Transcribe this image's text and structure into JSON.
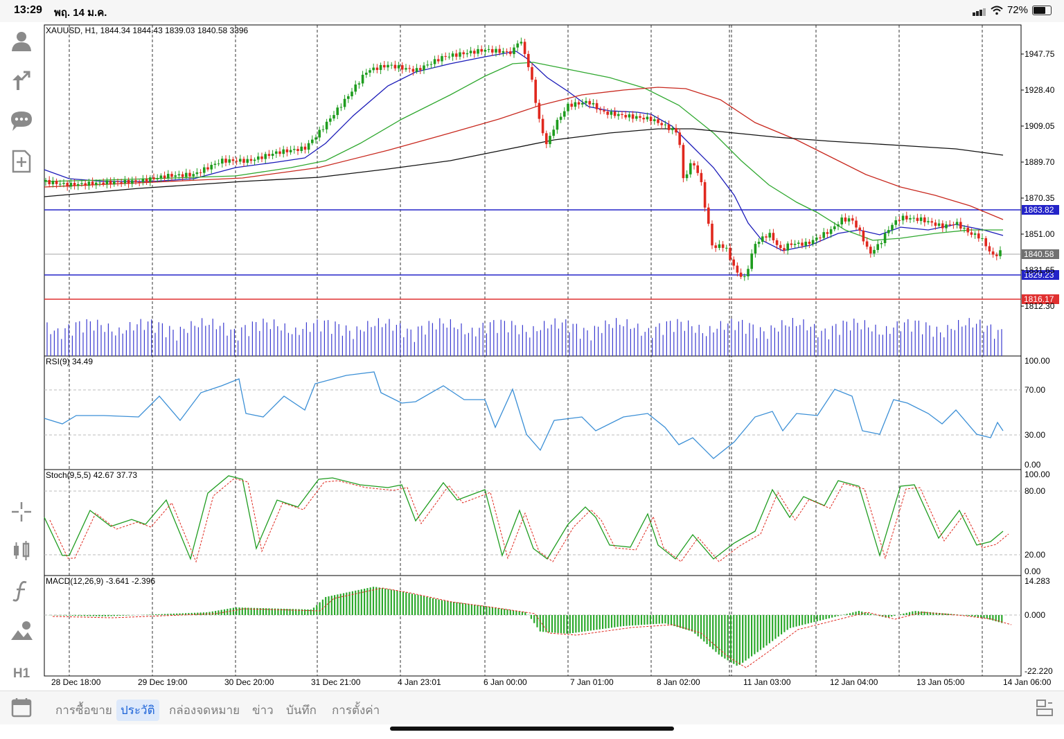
{
  "status_bar": {
    "time": "13:29",
    "date": "พฤ. 14 ม.ค.",
    "battery": "72%"
  },
  "chart": {
    "header": "XAUUSD, H1, 1844.34 1844.43 1839.03 1840.58 3396",
    "price_ticks": [
      "1947.75",
      "1928.40",
      "1909.05",
      "1889.70",
      "1870.35",
      "1851.00",
      "1831.65",
      "1812.30"
    ],
    "hline_labels": {
      "top": "1863.82",
      "current": "1840.58",
      "support": "1829.23",
      "red": "1816.17"
    },
    "colors": {
      "up": "#1e9c1e",
      "down": "#e0281e",
      "blue": "#1a1ab8",
      "green": "#2fa82f",
      "red": "#c8281e",
      "black": "#111111",
      "rsi": "#3b8fd6",
      "hline_blue": "#2424c8",
      "hline_red": "#e03030"
    },
    "time_labels": [
      "28 Dec 18:00",
      "29 Dec 19:00",
      "30 Dec 20:00",
      "31 Dec 21:00",
      "4 Jan 23:01",
      "6 Jan 00:00",
      "7 Jan 01:00",
      "8 Jan 02:00",
      "11 Jan 03:00",
      "12 Jan 04:00",
      "13 Jan 05:00",
      "14 Jan 06:00"
    ],
    "rsi": {
      "title": "RSI(9) 34.49",
      "ticks": [
        "100.00",
        "70.00",
        "30.00",
        "0.00"
      ]
    },
    "stoch": {
      "title": "Stoch(9,5,5) 42.67 37.73",
      "ticks": [
        "100.00",
        "80.00",
        "20.00",
        "0.00"
      ]
    },
    "macd": {
      "title": "MACD(12,26,9) -3.641 -2.396",
      "ticks": [
        "14.283",
        "0.000",
        "-22.220"
      ]
    }
  },
  "left_toolbar": [
    "account-icon",
    "trade-icon",
    "chat-icon",
    "new-order-icon",
    "crosshair-icon",
    "indicators-icon",
    "function-icon",
    "objects-icon",
    "timeframe-label"
  ],
  "timeframe": "H1",
  "tabs": [
    {
      "label": "การซื้อขาย",
      "active": false
    },
    {
      "label": "ประวัติ",
      "active": true
    },
    {
      "label": "กล่องจดหมาย",
      "active": false
    },
    {
      "label": "ข่าว",
      "active": false
    },
    {
      "label": "บันทึก",
      "active": false
    },
    {
      "label": "การตั้งค่า",
      "active": false
    }
  ]
}
